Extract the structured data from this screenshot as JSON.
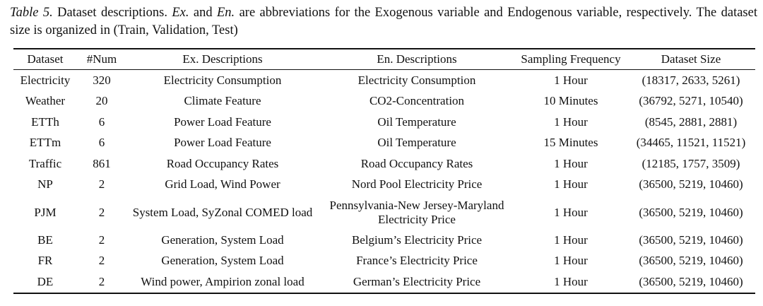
{
  "caption": {
    "label": "Table 5.",
    "t1": " Dataset descriptions. ",
    "ex": "Ex.",
    "t2": " and ",
    "en": "En.",
    "t3": " are abbreviations for the Exogenous variable and Endogenous variable, respectively. The dataset size is organized in (Train, Validation, Test)"
  },
  "headers": [
    "Dataset",
    "#Num",
    "Ex. Descriptions",
    "En. Descriptions",
    "Sampling Frequency",
    "Dataset Size"
  ],
  "rows": [
    {
      "dataset": "Electricity",
      "num": "320",
      "ex": "Electricity Consumption",
      "en": "Electricity Consumption",
      "freq": "1 Hour",
      "size": "(18317, 2633, 5261)"
    },
    {
      "dataset": "Weather",
      "num": "20",
      "ex": "Climate Feature",
      "en": "CO2-Concentration",
      "freq": "10 Minutes",
      "size": "(36792, 5271, 10540)"
    },
    {
      "dataset": "ETTh",
      "num": "6",
      "ex": "Power Load Feature",
      "en": "Oil Temperature",
      "freq": "1 Hour",
      "size": "(8545, 2881, 2881)"
    },
    {
      "dataset": "ETTm",
      "num": "6",
      "ex": "Power Load Feature",
      "en": "Oil Temperature",
      "freq": "15 Minutes",
      "size": "(34465, 11521, 11521)"
    },
    {
      "dataset": "Traffic",
      "num": "861",
      "ex": "Road Occupancy Rates",
      "en": "Road Occupancy Rates",
      "freq": "1 Hour",
      "size": "(12185, 1757, 3509)"
    },
    {
      "dataset": "NP",
      "num": "2",
      "ex": "Grid Load, Wind Power",
      "en": "Nord Pool Electricity Price",
      "freq": "1 Hour",
      "size": "(36500, 5219, 10460)"
    },
    {
      "dataset": "PJM",
      "num": "2",
      "ex": "System Load, SyZonal COMED load",
      "en": "Pennsylvania-New Jersey-Maryland",
      "en2": "Electricity Price",
      "freq": "1 Hour",
      "size": "(36500, 5219, 10460)"
    },
    {
      "dataset": "BE",
      "num": "2",
      "ex": "Generation, System Load",
      "en": "Belgium’s Electricity Price",
      "freq": "1 Hour",
      "size": "(36500, 5219, 10460)"
    },
    {
      "dataset": "FR",
      "num": "2",
      "ex": "Generation, System Load",
      "en": "France’s Electricity Price",
      "freq": "1 Hour",
      "size": "(36500, 5219, 10460)"
    },
    {
      "dataset": "DE",
      "num": "2",
      "ex": "Wind power, Ampirion zonal load",
      "en": "German’s Electricity Price",
      "freq": "1 Hour",
      "size": "(36500, 5219, 10460)"
    }
  ]
}
